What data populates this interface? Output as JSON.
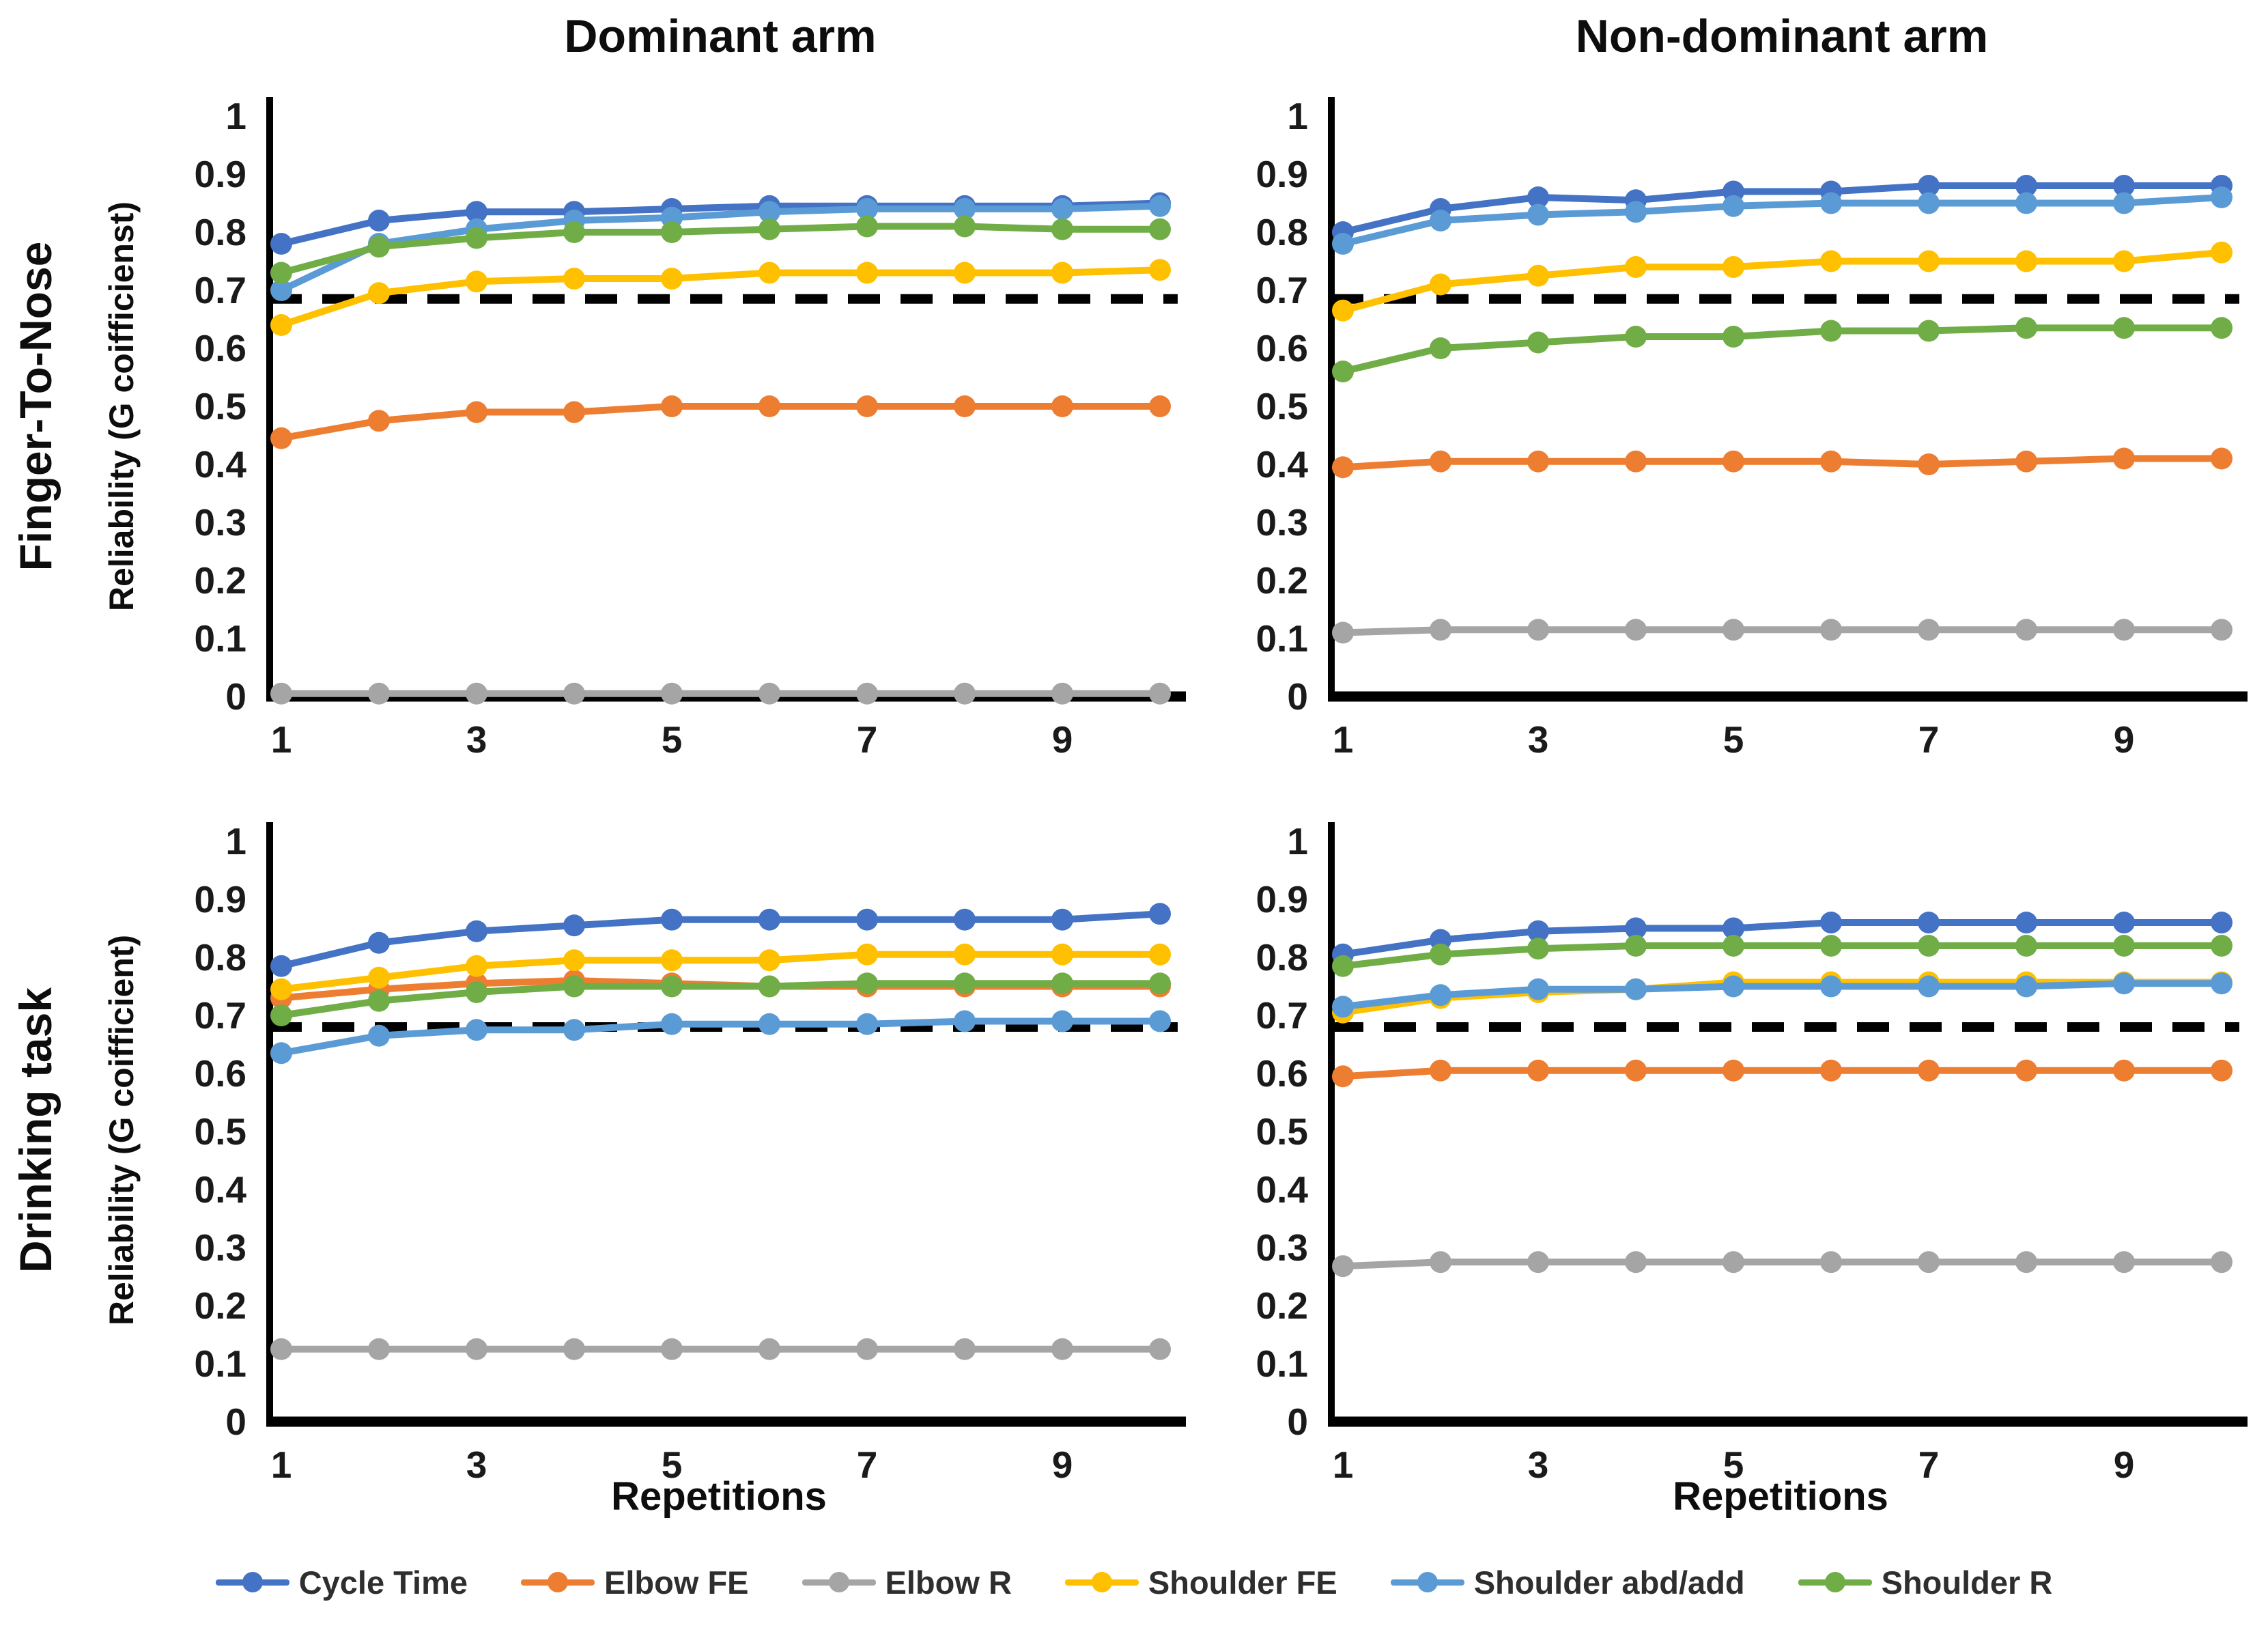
{
  "titles": {
    "dominant": "Dominant arm",
    "non_dominant": "Non-dominant arm"
  },
  "rows": [
    {
      "label": "Finger-To-Nose",
      "ylabel": "Reliability (G coifficienst)"
    },
    {
      "label": "Drinking task",
      "ylabel": "Reliability (G coifficient)"
    }
  ],
  "xlabel": "Repetitions",
  "legend": [
    "Cycle Time",
    "Elbow FE",
    "Elbow R",
    "Shoulder FE",
    "Shoulder abd/add",
    "Shoulder R"
  ],
  "colors": {
    "Cycle Time": "#4472C4",
    "Elbow FE": "#ED7D31",
    "Elbow R": "#A5A5A5",
    "Shoulder FE": "#FFC000",
    "Shoulder abd/add": "#5B9BD5",
    "Shoulder R": "#70AD47",
    "threshold_line": "#000000",
    "axis": "#000000",
    "tick_text": "#1a1a1a"
  },
  "chart_data": [
    {
      "type": "line",
      "task": "Finger-To-Nose",
      "arm": "Dominant",
      "x": [
        1,
        2,
        3,
        4,
        5,
        6,
        7,
        8,
        9,
        10
      ],
      "xticks": [
        1,
        3,
        5,
        7,
        9
      ],
      "yticks": [
        "1",
        "0.9",
        "0.8",
        "0.7",
        "0.6",
        "0.5",
        "0.4",
        "0.3",
        "0.2",
        "0.1",
        "0"
      ],
      "ylim": [
        0,
        1
      ],
      "threshold": 0.685,
      "series": [
        {
          "name": "Cycle Time",
          "values": [
            0.78,
            0.82,
            0.835,
            0.835,
            0.84,
            0.845,
            0.845,
            0.845,
            0.845,
            0.85
          ]
        },
        {
          "name": "Elbow FE",
          "values": [
            0.445,
            0.475,
            0.49,
            0.49,
            0.5,
            0.5,
            0.5,
            0.5,
            0.5,
            0.5
          ]
        },
        {
          "name": "Elbow R",
          "values": [
            0.005,
            0.005,
            0.005,
            0.005,
            0.005,
            0.005,
            0.005,
            0.005,
            0.005,
            0.005
          ]
        },
        {
          "name": "Shoulder FE",
          "values": [
            0.64,
            0.695,
            0.715,
            0.72,
            0.72,
            0.73,
            0.73,
            0.73,
            0.73,
            0.735
          ]
        },
        {
          "name": "Shoulder abd/add",
          "values": [
            0.7,
            0.78,
            0.805,
            0.82,
            0.825,
            0.835,
            0.84,
            0.84,
            0.84,
            0.845
          ]
        },
        {
          "name": "Shoulder R",
          "values": [
            0.73,
            0.775,
            0.79,
            0.8,
            0.8,
            0.805,
            0.81,
            0.81,
            0.805,
            0.805
          ]
        }
      ]
    },
    {
      "type": "line",
      "task": "Finger-To-Nose",
      "arm": "Non-dominant",
      "x": [
        1,
        2,
        3,
        4,
        5,
        6,
        7,
        8,
        9,
        10
      ],
      "xticks": [
        1,
        3,
        5,
        7,
        9
      ],
      "yticks": [
        "1",
        "0.9",
        "0.8",
        "0.7",
        "0.6",
        "0.5",
        "0.4",
        "0.3",
        "0.2",
        "0.1",
        "0"
      ],
      "ylim": [
        0,
        1
      ],
      "threshold": 0.685,
      "series": [
        {
          "name": "Cycle Time",
          "values": [
            0.8,
            0.84,
            0.86,
            0.855,
            0.87,
            0.87,
            0.88,
            0.88,
            0.88,
            0.88
          ]
        },
        {
          "name": "Elbow FE",
          "values": [
            0.395,
            0.405,
            0.405,
            0.405,
            0.405,
            0.405,
            0.4,
            0.405,
            0.41,
            0.41
          ]
        },
        {
          "name": "Elbow R",
          "values": [
            0.11,
            0.115,
            0.115,
            0.115,
            0.115,
            0.115,
            0.115,
            0.115,
            0.115,
            0.115
          ]
        },
        {
          "name": "Shoulder FE",
          "values": [
            0.665,
            0.71,
            0.725,
            0.74,
            0.74,
            0.75,
            0.75,
            0.75,
            0.75,
            0.765
          ]
        },
        {
          "name": "Shoulder abd/add",
          "values": [
            0.78,
            0.82,
            0.83,
            0.835,
            0.845,
            0.85,
            0.85,
            0.85,
            0.85,
            0.86
          ]
        },
        {
          "name": "Shoulder R",
          "values": [
            0.56,
            0.6,
            0.61,
            0.62,
            0.62,
            0.63,
            0.63,
            0.635,
            0.635,
            0.635
          ]
        }
      ]
    },
    {
      "type": "line",
      "task": "Drinking task",
      "arm": "Dominant",
      "x": [
        1,
        2,
        3,
        4,
        5,
        6,
        7,
        8,
        9,
        10
      ],
      "xticks": [
        1,
        3,
        5,
        7,
        9
      ],
      "yticks": [
        "1",
        "0.9",
        "0.8",
        "0.7",
        "0.6",
        "0.5",
        "0.4",
        "0.3",
        "0.2",
        "0.1",
        "0"
      ],
      "ylim": [
        0,
        1
      ],
      "threshold": 0.68,
      "series": [
        {
          "name": "Cycle Time",
          "values": [
            0.785,
            0.825,
            0.845,
            0.855,
            0.865,
            0.865,
            0.865,
            0.865,
            0.865,
            0.875
          ]
        },
        {
          "name": "Elbow FE",
          "values": [
            0.73,
            0.745,
            0.755,
            0.76,
            0.755,
            0.75,
            0.75,
            0.75,
            0.75,
            0.75
          ]
        },
        {
          "name": "Elbow R",
          "values": [
            0.125,
            0.125,
            0.125,
            0.125,
            0.125,
            0.125,
            0.125,
            0.125,
            0.125,
            0.125
          ]
        },
        {
          "name": "Shoulder FE",
          "values": [
            0.745,
            0.765,
            0.785,
            0.795,
            0.795,
            0.795,
            0.805,
            0.805,
            0.805,
            0.805
          ]
        },
        {
          "name": "Shoulder abd/add",
          "values": [
            0.635,
            0.665,
            0.675,
            0.675,
            0.685,
            0.685,
            0.685,
            0.69,
            0.69,
            0.69
          ]
        },
        {
          "name": "Shoulder R",
          "values": [
            0.7,
            0.725,
            0.74,
            0.75,
            0.75,
            0.75,
            0.755,
            0.755,
            0.755,
            0.755
          ]
        }
      ]
    },
    {
      "type": "line",
      "task": "Drinking task",
      "arm": "Non-dominant",
      "x": [
        1,
        2,
        3,
        4,
        5,
        6,
        7,
        8,
        9,
        10
      ],
      "xticks": [
        1,
        3,
        5,
        7,
        9
      ],
      "yticks": [
        "1",
        "0.9",
        "0.8",
        "0.7",
        "0.6",
        "0.5",
        "0.4",
        "0.3",
        "0.2",
        "0.1",
        "0"
      ],
      "ylim": [
        0,
        1
      ],
      "threshold": 0.68,
      "series": [
        {
          "name": "Cycle Time",
          "values": [
            0.805,
            0.83,
            0.845,
            0.85,
            0.85,
            0.86,
            0.86,
            0.86,
            0.86,
            0.86
          ]
        },
        {
          "name": "Elbow FE",
          "values": [
            0.595,
            0.605,
            0.605,
            0.605,
            0.605,
            0.605,
            0.605,
            0.605,
            0.605,
            0.605
          ]
        },
        {
          "name": "Elbow R",
          "values": [
            0.268,
            0.275,
            0.275,
            0.275,
            0.275,
            0.275,
            0.275,
            0.275,
            0.275,
            0.275
          ]
        },
        {
          "name": "Shoulder FE",
          "values": [
            0.705,
            0.73,
            0.74,
            0.745,
            0.757,
            0.757,
            0.757,
            0.757,
            0.757,
            0.757
          ]
        },
        {
          "name": "Shoulder abd/add",
          "values": [
            0.715,
            0.735,
            0.745,
            0.745,
            0.75,
            0.75,
            0.75,
            0.75,
            0.755,
            0.755
          ]
        },
        {
          "name": "Shoulder R",
          "values": [
            0.785,
            0.805,
            0.815,
            0.82,
            0.82,
            0.82,
            0.82,
            0.82,
            0.82,
            0.82
          ]
        }
      ]
    }
  ]
}
